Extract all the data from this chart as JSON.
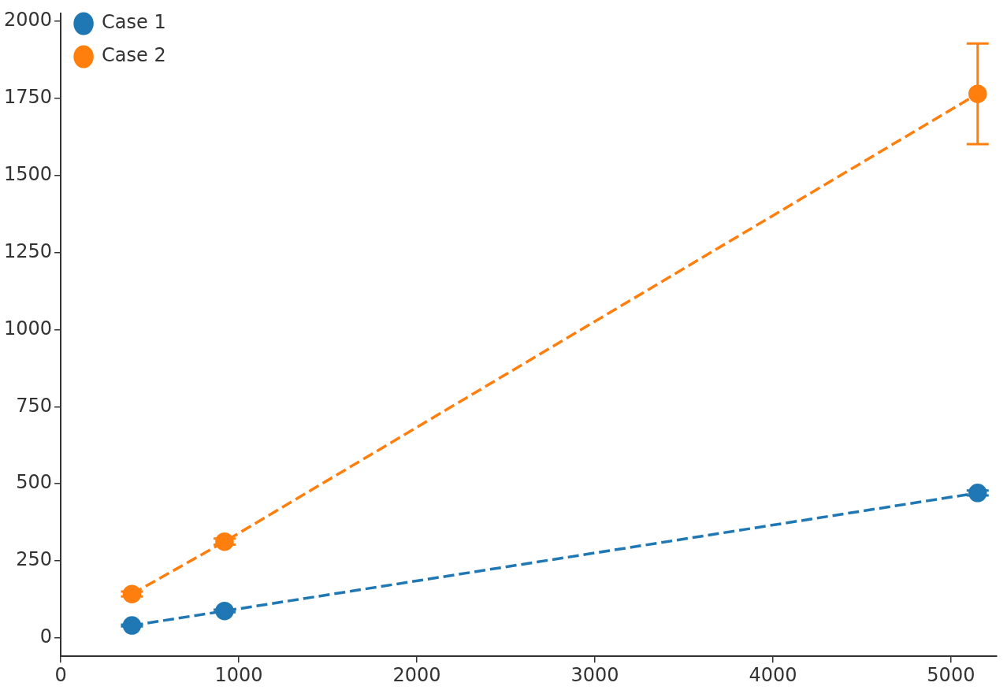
{
  "chart_data": {
    "type": "line",
    "xlim": [
      0,
      5255
    ],
    "ylim": [
      -60,
      2025
    ],
    "xticks": [
      0,
      1000,
      2000,
      3000,
      4000,
      5000
    ],
    "yticks": [
      0,
      250,
      500,
      750,
      1000,
      1250,
      1500,
      1750,
      2000
    ],
    "series": [
      {
        "name": "Case 1",
        "color": "#1f77b4",
        "x": [
          400,
          920,
          5150
        ],
        "values": [
          40,
          87,
          470
        ],
        "errors": [
          3,
          4,
          8
        ]
      },
      {
        "name": "Case 2",
        "color": "#ff7f0e",
        "x": [
          400,
          920,
          5150
        ],
        "values": [
          142,
          312,
          1765
        ],
        "errors": [
          8,
          10,
          [
            1602,
            1928
          ]
        ]
      }
    ],
    "marker": "circle",
    "line_style": "dashed",
    "legend": "top left",
    "grid": false
  }
}
